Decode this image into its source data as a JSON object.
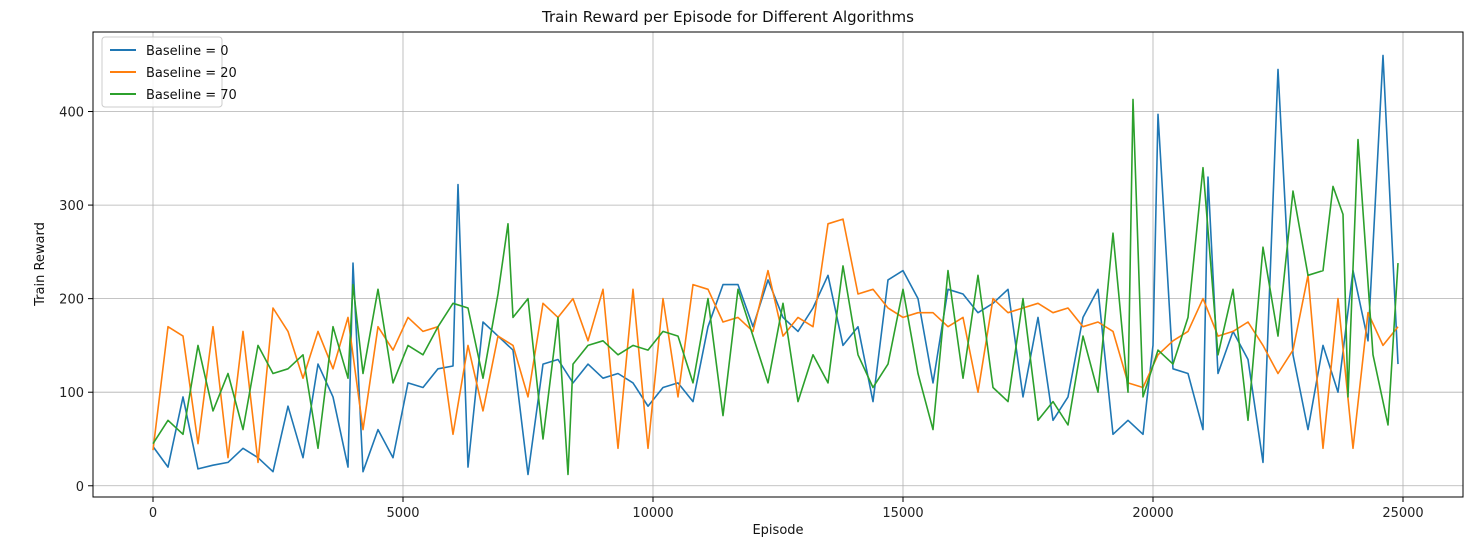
{
  "chart_data": {
    "type": "line",
    "title": "Train Reward per Episode for Different Algorithms",
    "xlabel": "Episode",
    "ylabel": "Train Reward",
    "xlim": [
      -1200,
      26200
    ],
    "ylim": [
      -12,
      485
    ],
    "xticks": [
      0,
      5000,
      10000,
      15000,
      20000,
      25000
    ],
    "yticks": [
      0,
      100,
      200,
      300,
      400
    ],
    "grid": true,
    "legend_position": "top-left",
    "series": [
      {
        "name": "Baseline = 0",
        "color": "#1f77b4",
        "x": [
          0,
          300,
          600,
          900,
          1200,
          1500,
          1800,
          2100,
          2400,
          2700,
          3000,
          3300,
          3600,
          3900,
          4000,
          4200,
          4500,
          4800,
          5100,
          5400,
          5700,
          6000,
          6100,
          6300,
          6600,
          6900,
          7200,
          7500,
          7800,
          8100,
          8400,
          8700,
          9000,
          9300,
          9600,
          9900,
          10200,
          10500,
          10800,
          11100,
          11400,
          11700,
          12000,
          12300,
          12600,
          12900,
          13200,
          13500,
          13800,
          14100,
          14400,
          14700,
          15000,
          15300,
          15600,
          15900,
          16200,
          16500,
          16800,
          17100,
          17400,
          17700,
          18000,
          18300,
          18600,
          18900,
          19200,
          19500,
          19800,
          20000,
          20100,
          20400,
          20700,
          21000,
          21100,
          21300,
          21600,
          21900,
          22200,
          22500,
          22800,
          23100,
          23400,
          23700,
          24000,
          24300,
          24600,
          24900
        ],
        "values": [
          42,
          20,
          95,
          18,
          22,
          25,
          40,
          30,
          15,
          85,
          30,
          130,
          95,
          20,
          238,
          15,
          60,
          30,
          110,
          105,
          125,
          128,
          322,
          20,
          175,
          160,
          145,
          12,
          130,
          135,
          110,
          130,
          115,
          120,
          110,
          85,
          105,
          110,
          90,
          170,
          215,
          215,
          170,
          220,
          180,
          165,
          190,
          225,
          150,
          170,
          90,
          220,
          230,
          200,
          110,
          210,
          205,
          185,
          195,
          210,
          95,
          180,
          70,
          95,
          180,
          210,
          55,
          70,
          55,
          150,
          397,
          125,
          120,
          60,
          330,
          120,
          165,
          135,
          25,
          445,
          140,
          60,
          150,
          100,
          230,
          155,
          460,
          130
        ]
      },
      {
        "name": "Baseline = 20",
        "color": "#ff7f0e",
        "x": [
          0,
          300,
          600,
          900,
          1200,
          1500,
          1800,
          2100,
          2400,
          2700,
          3000,
          3300,
          3600,
          3900,
          4200,
          4500,
          4800,
          5100,
          5400,
          5700,
          6000,
          6300,
          6600,
          6900,
          7200,
          7500,
          7800,
          8100,
          8400,
          8700,
          9000,
          9300,
          9600,
          9900,
          10200,
          10500,
          10800,
          11100,
          11400,
          11700,
          12000,
          12300,
          12600,
          12900,
          13200,
          13500,
          13800,
          14100,
          14400,
          14700,
          15000,
          15300,
          15600,
          15900,
          16200,
          16500,
          16800,
          17100,
          17400,
          17700,
          18000,
          18300,
          18600,
          18900,
          19200,
          19500,
          19800,
          20100,
          20400,
          20700,
          21000,
          21300,
          21600,
          21900,
          22200,
          22500,
          22800,
          23100,
          23400,
          23700,
          24000,
          24300,
          24600,
          24900
        ],
        "values": [
          38,
          170,
          160,
          45,
          170,
          30,
          165,
          25,
          190,
          165,
          115,
          165,
          125,
          180,
          60,
          170,
          145,
          180,
          165,
          170,
          55,
          150,
          80,
          160,
          150,
          95,
          195,
          180,
          200,
          155,
          210,
          40,
          210,
          40,
          200,
          95,
          215,
          210,
          175,
          180,
          165,
          230,
          160,
          180,
          170,
          280,
          285,
          205,
          210,
          190,
          180,
          185,
          185,
          170,
          180,
          100,
          200,
          185,
          190,
          195,
          185,
          190,
          170,
          175,
          165,
          110,
          105,
          140,
          155,
          165,
          200,
          160,
          165,
          175,
          150,
          120,
          145,
          225,
          40,
          200,
          40,
          185,
          150,
          170
        ]
      },
      {
        "name": "Baseline = 70",
        "color": "#2ca02c",
        "x": [
          0,
          300,
          600,
          900,
          1200,
          1500,
          1800,
          2100,
          2400,
          2700,
          3000,
          3300,
          3600,
          3900,
          4000,
          4200,
          4500,
          4800,
          5100,
          5400,
          5700,
          6000,
          6300,
          6600,
          6900,
          7100,
          7200,
          7500,
          7800,
          8100,
          8300,
          8400,
          8700,
          9000,
          9300,
          9600,
          9900,
          10200,
          10500,
          10800,
          11100,
          11400,
          11700,
          12000,
          12300,
          12600,
          12900,
          13200,
          13500,
          13800,
          14100,
          14400,
          14700,
          15000,
          15300,
          15600,
          15900,
          16200,
          16500,
          16800,
          17100,
          17400,
          17700,
          18000,
          18300,
          18600,
          18900,
          19200,
          19500,
          19600,
          19800,
          20100,
          20400,
          20700,
          21000,
          21300,
          21600,
          21900,
          22200,
          22500,
          22800,
          23100,
          23400,
          23600,
          23800,
          23900,
          24100,
          24400,
          24700,
          24900
        ],
        "values": [
          45,
          70,
          55,
          150,
          80,
          120,
          60,
          150,
          120,
          125,
          140,
          40,
          170,
          115,
          215,
          120,
          210,
          110,
          150,
          140,
          170,
          195,
          190,
          115,
          205,
          280,
          180,
          200,
          50,
          180,
          12,
          130,
          150,
          155,
          140,
          150,
          145,
          165,
          160,
          110,
          200,
          75,
          210,
          160,
          110,
          195,
          90,
          140,
          110,
          235,
          140,
          105,
          130,
          210,
          120,
          60,
          230,
          115,
          225,
          105,
          90,
          200,
          70,
          90,
          65,
          160,
          100,
          270,
          100,
          413,
          95,
          145,
          130,
          180,
          340,
          140,
          210,
          70,
          255,
          160,
          315,
          225,
          230,
          320,
          290,
          95,
          370,
          140,
          65,
          238
        ]
      }
    ]
  }
}
